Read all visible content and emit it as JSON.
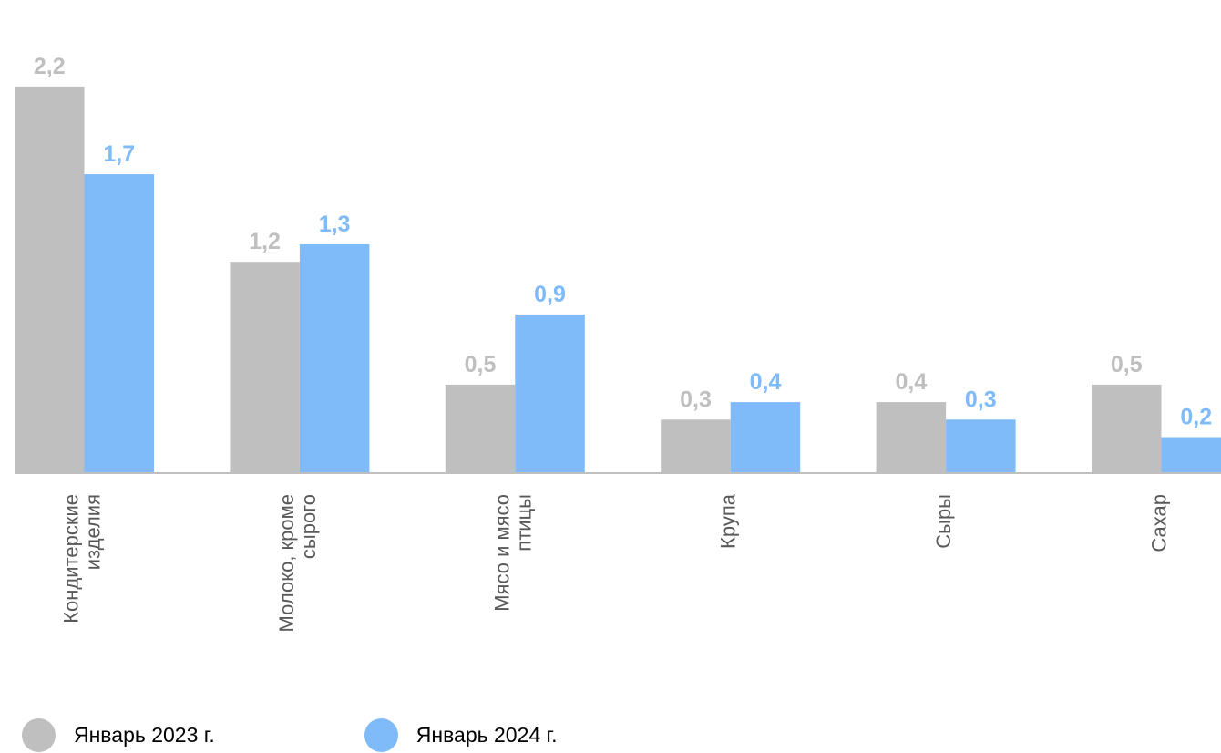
{
  "chart_data": {
    "type": "bar",
    "categories": [
      [
        "Кондитерские",
        "изделия"
      ],
      [
        "Молоко, кроме",
        "сырого"
      ],
      [
        "Мясо и мясо",
        "птицы"
      ],
      [
        "Крупа"
      ],
      [
        "Сыры"
      ],
      [
        "Сахар"
      ]
    ],
    "series": [
      {
        "name": "Январь 2023 г.",
        "color": "#bfbfbf",
        "values": [
          2.2,
          1.2,
          0.5,
          0.3,
          0.4,
          0.5
        ],
        "labels": [
          "2,2",
          "1,2",
          "0,5",
          "0,3",
          "0,4",
          "0,5"
        ]
      },
      {
        "name": "Январь 2024 г.",
        "color": "#7fbaf9",
        "values": [
          1.7,
          1.3,
          0.9,
          0.4,
          0.3,
          0.2
        ],
        "labels": [
          "1,7",
          "1,3",
          "0,9",
          "0,4",
          "0,3",
          "0,2"
        ]
      }
    ],
    "title": "",
    "xlabel": "",
    "ylabel": "",
    "grid": false,
    "legend_position": "bottom-left",
    "axis_color": "#bfbfbf"
  }
}
